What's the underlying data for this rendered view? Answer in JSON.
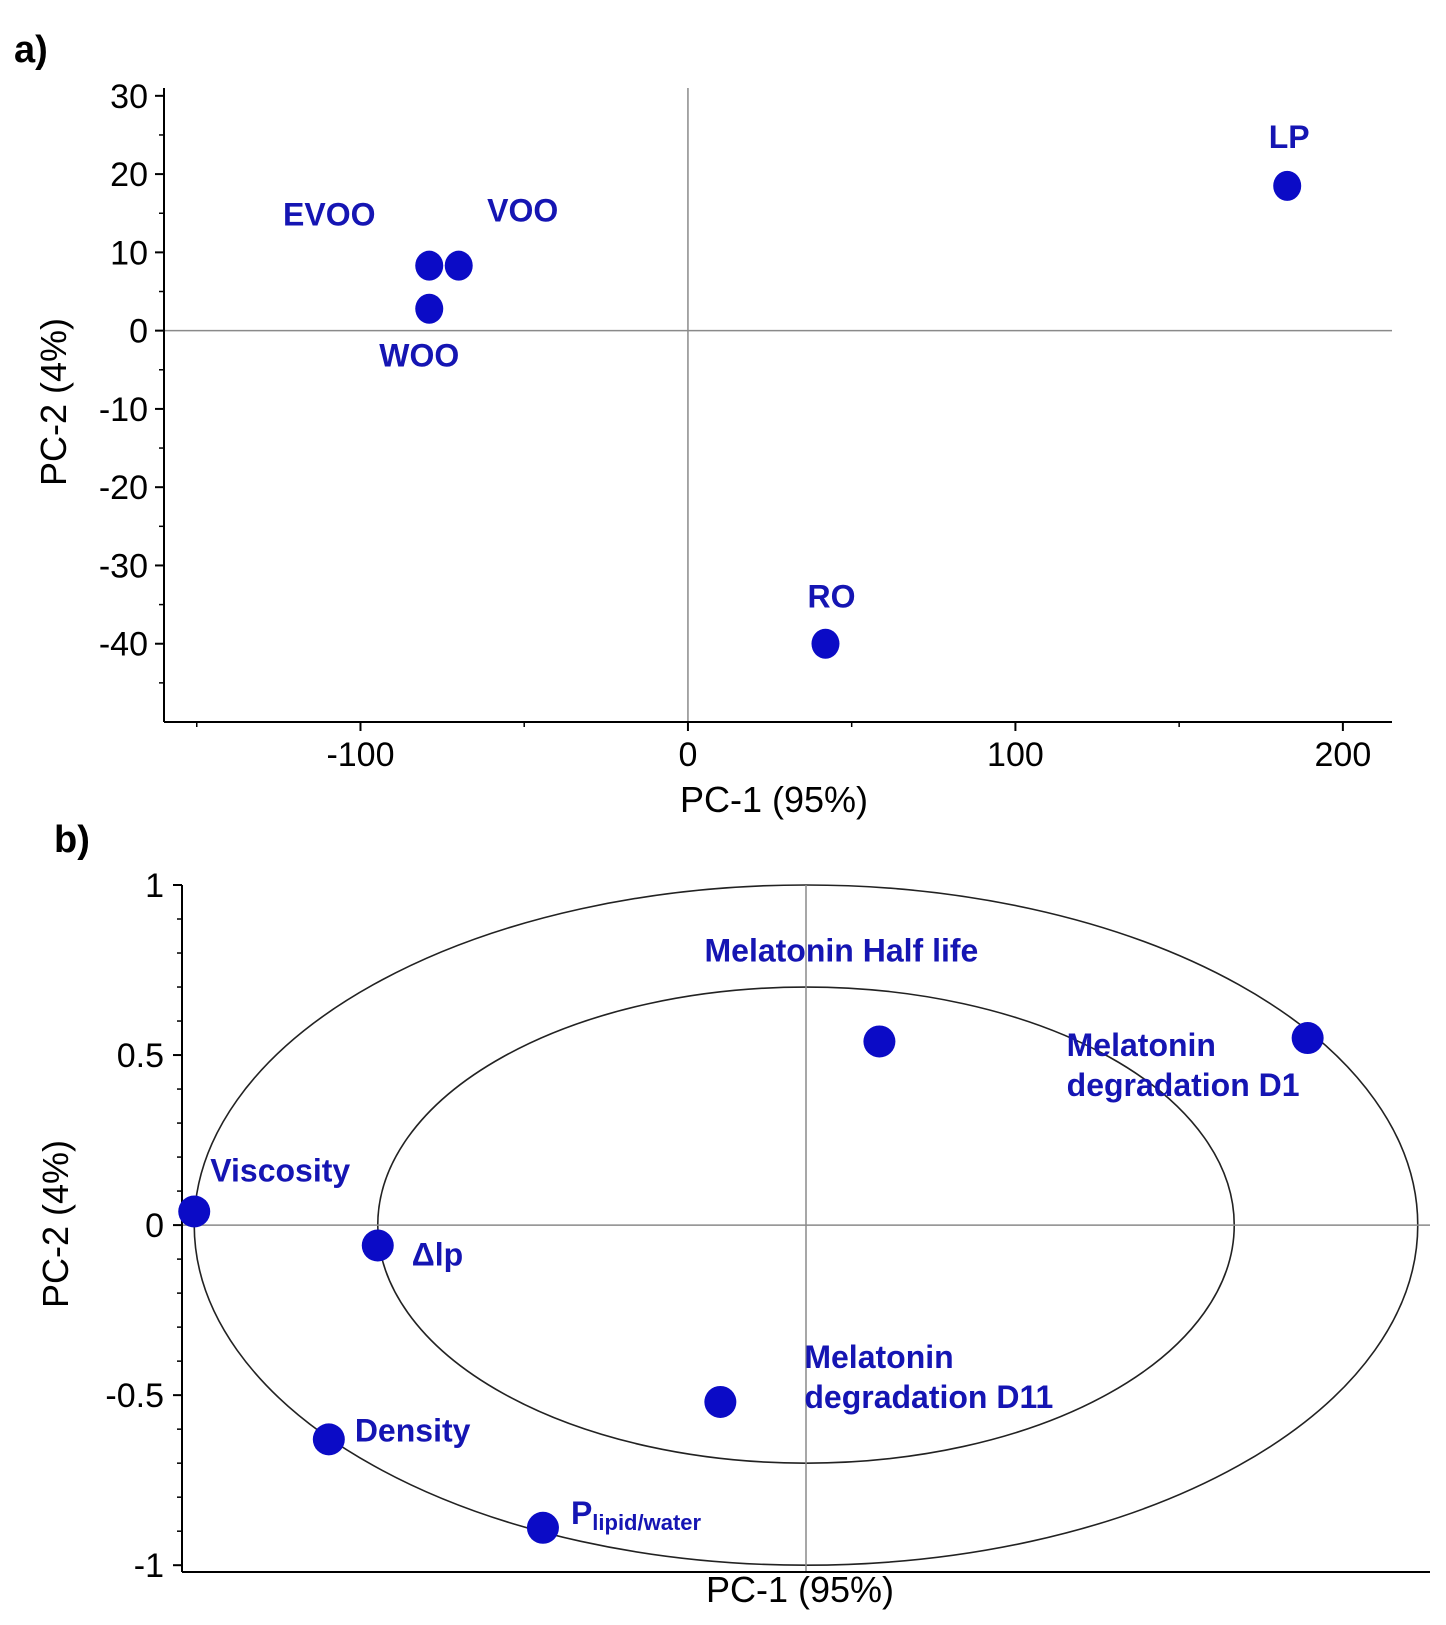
{
  "colors": {
    "marker": "#0b0bc6",
    "label": "#1515b3",
    "axis": "#000000",
    "zero_line": "#8a8a8a"
  },
  "chart_data": [
    {
      "panel": "a)",
      "type": "scatter",
      "title": "",
      "xlabel": "PC-1 (95%)",
      "ylabel": "PC-2 (4%)",
      "xlim": [
        -160,
        215
      ],
      "ylim": [
        -50,
        31
      ],
      "xticks": [
        -100,
        0,
        100,
        200
      ],
      "xtick_labels": [
        "-100",
        "0",
        "100",
        "200"
      ],
      "yticks": [
        30,
        20,
        10,
        0,
        -10,
        -20,
        -30,
        -40
      ],
      "ytick_labels": [
        "30",
        "20",
        "10",
        "0",
        "-10",
        "-20",
        "-30",
        "-40"
      ],
      "points": [
        {
          "name": "EVOO",
          "x": -79,
          "y": 8.3
        },
        {
          "name": "VOO",
          "x": -70,
          "y": 8.3
        },
        {
          "name": "WOO",
          "x": -79,
          "y": 2.8
        },
        {
          "name": "RO",
          "x": 42,
          "y": -40
        },
        {
          "name": "LP",
          "x": 183,
          "y": 18.5
        }
      ]
    },
    {
      "panel": "b)",
      "type": "scatter",
      "title": "",
      "xlabel": "PC-1 (95%)",
      "ylabel": "PC-2 (4%)",
      "xlim": [
        -1.02,
        1.02
      ],
      "ylim": [
        -1.02,
        1.0
      ],
      "yticks": [
        1,
        0.5,
        0,
        -0.5,
        -1
      ],
      "ytick_labels": [
        "1",
        "0.5",
        "0",
        "-0.5",
        "-1"
      ],
      "ellipses": [
        {
          "radius": 1.0
        },
        {
          "radius": 0.7
        }
      ],
      "points": [
        {
          "name": "Melatonin Half life",
          "x": 0.12,
          "y": 0.54
        },
        {
          "name": "Melatonin degradation D1",
          "x": 0.82,
          "y": 0.55
        },
        {
          "name": "Viscosity",
          "x": -1.0,
          "y": 0.04
        },
        {
          "name": "Δlp",
          "x": -0.7,
          "y": -0.06
        },
        {
          "name": "Melatonin degradation D11",
          "x": -0.14,
          "y": -0.52
        },
        {
          "name": "Density",
          "x": -0.78,
          "y": -0.63
        },
        {
          "name": "Plipid/water",
          "x": -0.43,
          "y": -0.89
        }
      ],
      "label_lines": {
        "Melatonin Half life": [
          "Melatonin Half life"
        ],
        "Melatonin degradation D1": [
          "Melatonin",
          "degradation D1"
        ],
        "Melatonin degradation D11": [
          "Melatonin",
          "degradation D11"
        ],
        "Viscosity": [
          "Viscosity"
        ],
        "Δlp": [
          "Δlp"
        ],
        "Density": [
          "Density"
        ]
      },
      "p_label": {
        "main": "P",
        "subscript": "lipid/water"
      }
    }
  ]
}
